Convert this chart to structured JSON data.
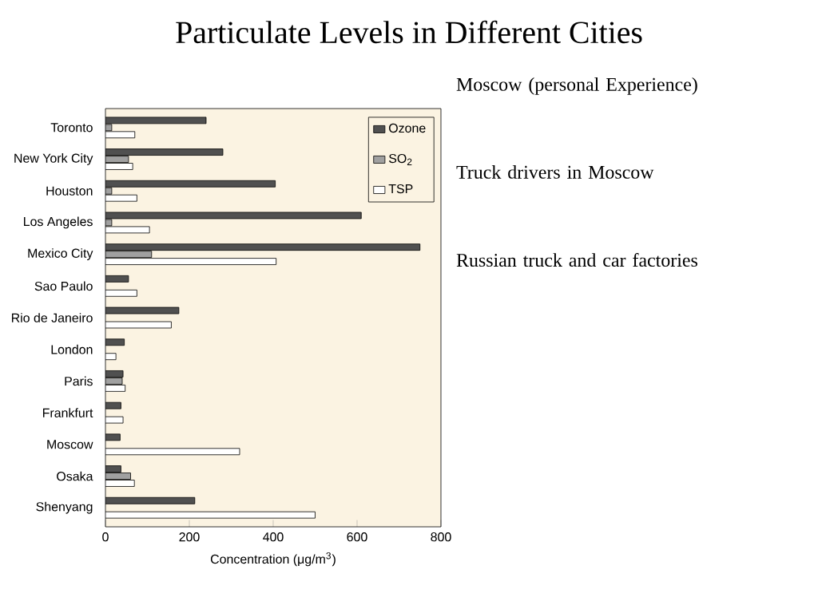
{
  "chart_data": {
    "type": "bar",
    "orientation": "horizontal",
    "title": "Particulate Levels in Different Cities",
    "categories": [
      "Toronto",
      "New York City",
      "Houston",
      "Los Angeles",
      "Mexico City",
      "Sao Paulo",
      "Rio de Janeiro",
      "London",
      "Paris",
      "Frankfurt",
      "Moscow",
      "Osaka",
      "Shenyang"
    ],
    "series": [
      {
        "name": "Ozone",
        "color": "#505050",
        "values": [
          240,
          280,
          405,
          610,
          750,
          55,
          175,
          45,
          42,
          37,
          35,
          37,
          213
        ]
      },
      {
        "name": "SO$_{2}$",
        "color": "#a0a0a0",
        "values": [
          15,
          55,
          15,
          15,
          110,
          null,
          null,
          null,
          40,
          null,
          null,
          60,
          null
        ]
      },
      {
        "name": "TSP",
        "color": "#ffffff",
        "values": [
          70,
          65,
          75,
          105,
          407,
          75,
          157,
          25,
          47,
          42,
          320,
          69,
          500
        ]
      }
    ],
    "xlabel": "Concentration (μg/m$^{3}$)",
    "xlim": [
      0,
      800
    ],
    "xticks": [
      0,
      200,
      400,
      600,
      800
    ],
    "legend": "top right",
    "annotations": [
      "Moscow (personal Experience)",
      "Truck drivers in Moscow",
      "Russian truck and car factories"
    ]
  }
}
